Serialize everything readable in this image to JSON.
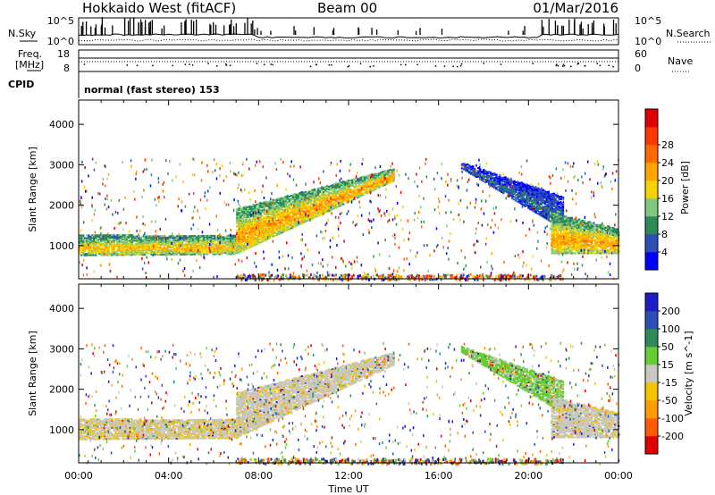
{
  "header": {
    "station": "Hokkaido West (fitACF)",
    "beam": "Beam 00",
    "date": "01/Mar/2016"
  },
  "noise_panel": {
    "left_label": "N.Sky",
    "right_label": "N.Search",
    "left_ticks": [
      "10^5",
      "10^0"
    ],
    "right_ticks": [
      "10^5",
      "10^0"
    ]
  },
  "freq_panel": {
    "left_label_1": "Freq.",
    "left_label_2": "[MHz]",
    "right_label": "Nave",
    "left_ticks": [
      "18",
      "8"
    ],
    "right_ticks": [
      "60",
      "0"
    ]
  },
  "cpid": {
    "label": "CPID",
    "value": "normal (fast stereo) 153"
  },
  "colors": {
    "power": [
      "#0000ff",
      "#2e4fb8",
      "#2e8b57",
      "#7fc97f",
      "#f5d200",
      "#ffa500",
      "#ff6a00",
      "#ff3800",
      "#e00000"
    ],
    "velocity": [
      "#e00000",
      "#ff5a00",
      "#ff9a00",
      "#f2c400",
      "#c8c8c0",
      "#66cc33",
      "#2e8b57",
      "#2e4fb8",
      "#1e1ec8"
    ]
  },
  "chart_data": [
    {
      "type": "heatmap",
      "name": "power",
      "ylabel": "Slant Range [km]",
      "xlabel": "",
      "xlim": [
        "00:00",
        "24:00"
      ],
      "ylim": [
        180,
        4600
      ],
      "yticks": [
        1000,
        2000,
        3000,
        4000
      ],
      "colorbar": {
        "label": "Power [dB]",
        "ticks": [
          4,
          8,
          12,
          16,
          20,
          24,
          28
        ],
        "range": [
          0,
          32
        ]
      },
      "bands": [
        {
          "t": [
            0,
            7
          ],
          "r_low": [
            750,
            780
          ],
          "r_high": [
            1250,
            1250
          ],
          "level_dB": 16
        },
        {
          "t": [
            7,
            14
          ],
          "r_low": [
            800,
            2600
          ],
          "r_high": [
            1900,
            2900
          ],
          "level_dB": 18
        },
        {
          "t": [
            17,
            21.5
          ],
          "r_low": [
            2900,
            1400
          ],
          "r_high": [
            3050,
            2200
          ],
          "level_dB": 6
        },
        {
          "t": [
            21,
            24
          ],
          "r_low": [
            800,
            800
          ],
          "r_high": [
            1800,
            1400
          ],
          "level_dB": 18
        }
      ]
    },
    {
      "type": "heatmap",
      "name": "velocity",
      "ylabel": "Slant Range [km]",
      "xlabel": "Time UT",
      "xlim": [
        "00:00",
        "24:00"
      ],
      "ylim": [
        180,
        4600
      ],
      "yticks": [
        1000,
        2000,
        3000,
        4000
      ],
      "xticks": [
        "00:00",
        "04:00",
        "08:00",
        "12:00",
        "16:00",
        "20:00",
        "00:00"
      ],
      "colorbar": {
        "label": "Velocity [m s^-1]",
        "ticks": [
          -200,
          -100,
          -50,
          -15,
          15,
          50,
          100,
          200
        ],
        "range": [
          -250,
          250
        ]
      },
      "bands": [
        {
          "t": [
            0,
            7
          ],
          "r_low": [
            750,
            780
          ],
          "r_high": [
            1250,
            1250
          ],
          "level_ms": -5
        },
        {
          "t": [
            7,
            14
          ],
          "r_low": [
            800,
            2600
          ],
          "r_high": [
            1900,
            2900
          ],
          "level_ms": 0
        },
        {
          "t": [
            17,
            21.5
          ],
          "r_low": [
            2900,
            1400
          ],
          "r_high": [
            3050,
            2200
          ],
          "level_ms": 40
        },
        {
          "t": [
            21,
            24
          ],
          "r_low": [
            800,
            800
          ],
          "r_high": [
            1800,
            1400
          ],
          "level_ms": 0
        }
      ]
    }
  ]
}
